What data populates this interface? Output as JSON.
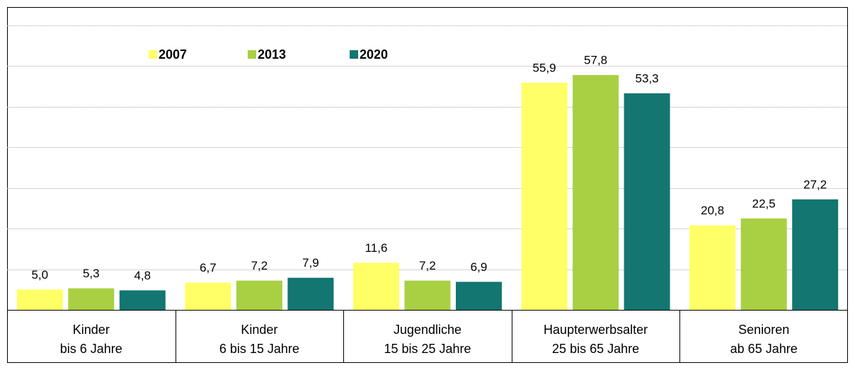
{
  "chart_data": {
    "type": "bar",
    "categories": [
      [
        "Kinder",
        "bis 6 Jahre"
      ],
      [
        "Kinder",
        "6 bis 15 Jahre"
      ],
      [
        "Jugendliche",
        "15 bis 25 Jahre"
      ],
      [
        "Haupterwerbsalter",
        "25 bis 65 Jahre"
      ],
      [
        "Senioren",
        "ab 65 Jahre"
      ]
    ],
    "series": [
      {
        "name": "2007",
        "color": "#ffff66",
        "values": [
          5.0,
          6.7,
          11.6,
          55.9,
          20.8
        ],
        "value_labels": [
          "5,0",
          "6,7",
          "11,6",
          "55,9",
          "20,8"
        ]
      },
      {
        "name": "2013",
        "color": "#a9d043",
        "values": [
          5.3,
          7.2,
          7.2,
          57.8,
          22.5
        ],
        "value_labels": [
          "5,3",
          "7,2",
          "7,2",
          "57,8",
          "22,5"
        ]
      },
      {
        "name": "2020",
        "color": "#137670",
        "values": [
          4.8,
          7.9,
          6.9,
          53.3,
          27.2
        ],
        "value_labels": [
          "4,8",
          "7,9",
          "6,9",
          "53,3",
          "27,2"
        ]
      }
    ],
    "ylim": [
      0,
      70
    ],
    "yticks": [
      0,
      10,
      20,
      30,
      40,
      50,
      60,
      70
    ],
    "grid": true,
    "legend": "top"
  }
}
